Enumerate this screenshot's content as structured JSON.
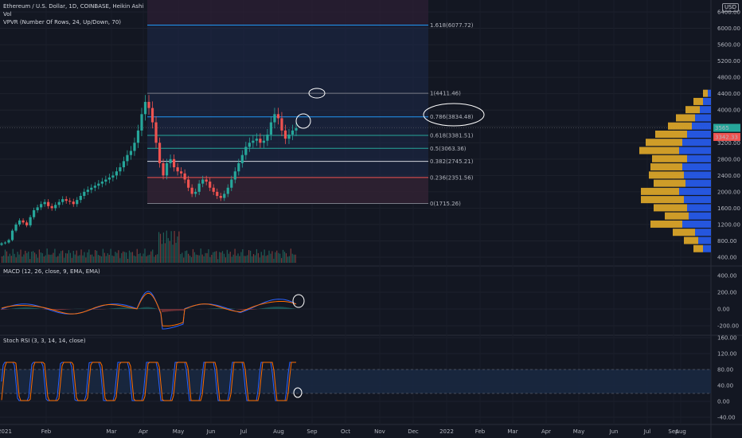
{
  "legend": {
    "main": "Ethereum / U.S. Dollar, 1D, COINBASE, Heikin Ashi",
    "vol": "Vol",
    "vpvr": "VPVR (Number Of Rows, 24, Up/Down, 70)",
    "macd": "MACD (12, 26, close, 9, EMA, EMA)",
    "stoch": "Stoch RSI (3, 3, 14, 14, close)"
  },
  "currency": "USD",
  "colors": {
    "background": "#131722",
    "up": "#26a69a",
    "down": "#ef5350",
    "fib_zone": "#1e2a4a",
    "vpvr_up": "#2962ff",
    "vpvr_down": "#f0b429",
    "macd_line": "#2962ff",
    "signal_line": "#ff6d00",
    "stoch_k": "#2962ff",
    "stoch_d": "#ff6d00"
  },
  "chart_data": [
    {
      "type": "candlestick",
      "panel": "price",
      "y_ticks": [
        "6400.00",
        "6000.00",
        "5600.00",
        "5200.00",
        "4800.00",
        "4400.00",
        "4000.00",
        "3600.00",
        "3200.00",
        "2800.00",
        "2400.00",
        "2000.00",
        "1600.00",
        "1200.00",
        "800.00",
        "400.00"
      ],
      "ylim": [
        300,
        6600
      ],
      "x_ticks": [
        "2021",
        "Feb",
        "Mar",
        "Apr",
        "May",
        "Jun",
        "Jul",
        "Aug",
        "Sep",
        "Oct",
        "Nov",
        "Dec",
        "2022",
        "Feb",
        "Mar",
        "Apr",
        "May",
        "Jun",
        "Jul",
        "Aug",
        "Sep"
      ],
      "fib_levels": [
        {
          "label": "1.618(6077.72)",
          "value": 6077.72,
          "color": "#2196f3"
        },
        {
          "label": "1(4411.46)",
          "value": 4411.46,
          "color": "#787b86"
        },
        {
          "label": "0.786(3834.48)",
          "value": 3834.48,
          "color": "#2196f3"
        },
        {
          "label": "0.618(3381.51)",
          "value": 3381.51,
          "color": "#26a69a"
        },
        {
          "label": "0.5(3063.36)",
          "value": 3063.36,
          "color": "#26a69a"
        },
        {
          "label": "0.382(2745.21)",
          "value": 2745.21,
          "color": "#d1d4dc"
        },
        {
          "label": "0.236(2351.56)",
          "value": 2351.56,
          "color": "#ef5350"
        },
        {
          "label": "0(1715.26)",
          "value": 1715.26,
          "color": "#787b86"
        }
      ],
      "price_tags": [
        {
          "label": "3565",
          "color": "#26a69a"
        },
        {
          "label": "3342.33",
          "color": "#ef5350"
        }
      ],
      "series_closes": [
        740,
        760,
        820,
        1050,
        1200,
        1300,
        1250,
        1180,
        1380,
        1550,
        1620,
        1700,
        1750,
        1650,
        1600,
        1680,
        1750,
        1820,
        1780,
        1760,
        1700,
        1800,
        1900,
        2000,
        2050,
        2100,
        2150,
        2200,
        2250,
        2300,
        2350,
        2400,
        2500,
        2600,
        2750,
        2900,
        3000,
        3200,
        3500,
        3900,
        4200,
        4050,
        3700,
        3200,
        2700,
        2400,
        2700,
        2800,
        2600,
        2500,
        2450,
        2300,
        2100,
        1950,
        2000,
        2200,
        2300,
        2250,
        2100,
        2000,
        1900,
        1850,
        1950,
        2100,
        2300,
        2500,
        2700,
        2900,
        3100,
        3200,
        3250,
        3300,
        3200,
        3250,
        3400,
        3700,
        3900,
        3800,
        3500,
        3300,
        3400,
        3500,
        3560
      ]
    },
    {
      "type": "histogram",
      "panel": "macd",
      "y_ticks": [
        "400.00",
        "200.00",
        "0.00",
        "-200.00"
      ],
      "ylim": [
        -280,
        470
      ]
    },
    {
      "type": "line",
      "panel": "stoch_rsi",
      "y_ticks": [
        "160.00",
        "120.00",
        "80.00",
        "40.00",
        "0.00",
        "-40.00"
      ],
      "ylim": [
        -55,
        175
      ],
      "bands": [
        20,
        80
      ]
    }
  ]
}
